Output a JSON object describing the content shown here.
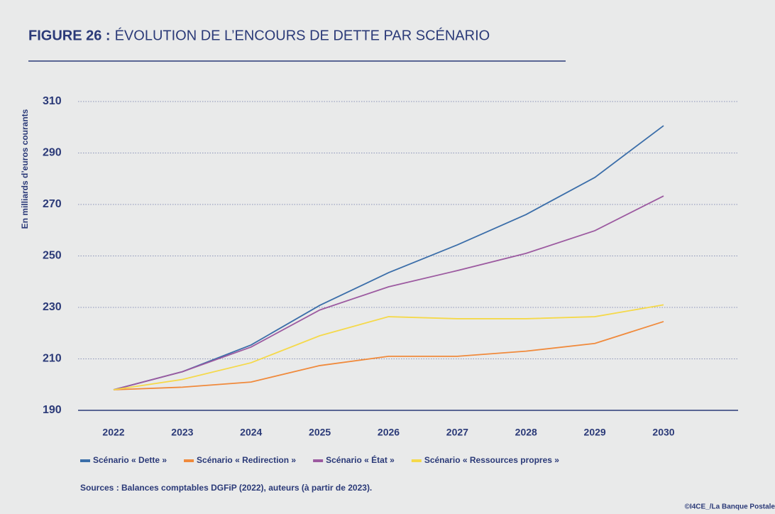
{
  "chart_data": {
    "type": "line",
    "figure_label": "FIGURE 26 :",
    "title": "ÉVOLUTION DE L’ENCOURS DE DETTE PAR SCÉNARIO",
    "y_label": "En milliards d’euros courants",
    "categories": [
      "2022",
      "2023",
      "2024",
      "2025",
      "2026",
      "2027",
      "2028",
      "2029",
      "2030"
    ],
    "series": [
      {
        "name": "Scénario « Dette »",
        "color": "#3b6ea9",
        "values": [
          198,
          205,
          215.4,
          230.8,
          243.5,
          254.3,
          266.1,
          280.5,
          300.6
        ]
      },
      {
        "name": "Scénario « Redirection »",
        "color": "#f08a3c",
        "values": [
          198,
          199,
          201,
          207.4,
          211,
          211,
          213,
          216,
          224.5
        ]
      },
      {
        "name": "Scénario « État »",
        "color": "#9c5aa0",
        "values": [
          198,
          205,
          214.6,
          229,
          238,
          244.3,
          251,
          259.8,
          273.3
        ]
      },
      {
        "name": "Scénario « Ressources propres »",
        "color": "#f5d94a",
        "values": [
          198,
          202,
          208.5,
          219,
          226.4,
          225.6,
          225.6,
          226.4,
          231
        ]
      }
    ],
    "ylim": [
      190,
      310
    ],
    "yticks": [
      190,
      210,
      230,
      250,
      270,
      290,
      310
    ],
    "grid": true,
    "source": "Sources : Balances comptables DGFiP (2022), auteurs (à partir de 2023).",
    "credit": "©I4CE_/La Banque Postale"
  }
}
